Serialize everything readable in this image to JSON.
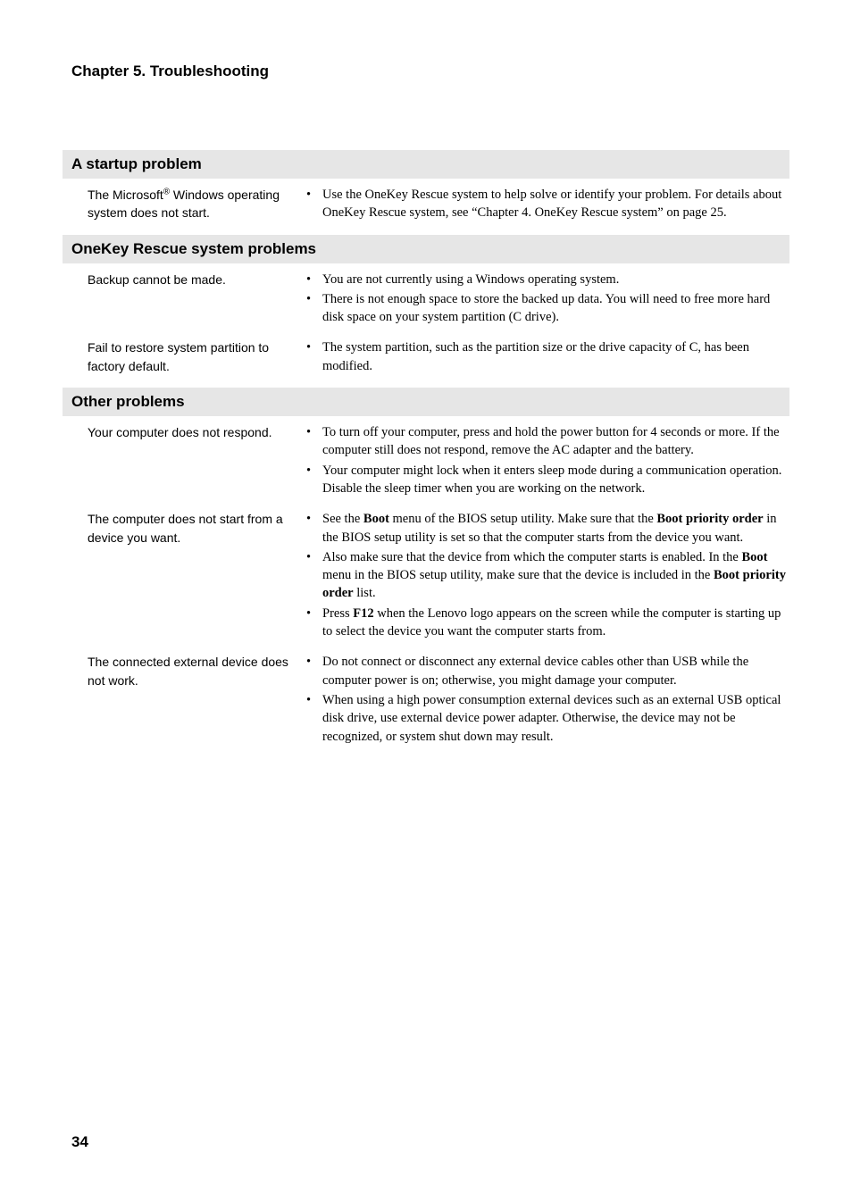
{
  "chapter_title": "Chapter 5. Troubleshooting",
  "page_number": "34",
  "colors": {
    "section_bg": "#e6e6e6",
    "text": "#000000",
    "page_bg": "#ffffff"
  },
  "sections": [
    {
      "header": "A startup problem",
      "rows": [
        {
          "left_pre": "The Microsoft",
          "left_sup": "®",
          "left_post": " Windows operating system does not start.",
          "bullets": [
            "Use the OneKey Rescue system to help solve or identify your problem. For details about OneKey Rescue system, see “Chapter 4. OneKey Rescue system” on page 25."
          ]
        }
      ]
    },
    {
      "header": "OneKey Rescue system problems",
      "rows": [
        {
          "left": "Backup cannot be made.",
          "bullets": [
            "You are not currently using a Windows operating system.",
            "There is not enough space to store the backed up data. You will need to free more hard disk space on your system partition (C drive)."
          ]
        },
        {
          "left": "Fail to restore system partition to factory default.",
          "bullets": [
            "The system partition, such as the partition size or the drive capacity of C, has been modified."
          ]
        }
      ]
    },
    {
      "header": "Other problems",
      "rows": [
        {
          "left": "Your computer does not respond.",
          "bullets": [
            "To turn off your computer, press and hold the power button for 4 seconds or more. If the computer still does not respond, remove the AC adapter and the battery.",
            "Your computer might lock when it enters sleep mode during a communication operation. Disable the sleep timer when you are working on the network."
          ]
        },
        {
          "left": "The computer does not start from a device you want.",
          "bullets_html": [
            "See the <b>Boot</b> menu of the BIOS setup utility. Make sure that the <b>Boot priority order</b> in the BIOS setup utility is set so that the computer starts from the device you want.",
            "Also make sure that the device from which the computer starts is enabled. In the <b>Boot</b> menu in the BIOS setup utility, make sure that the device is included in the <b>Boot priority order</b> list.",
            "Press <b>F12</b> when the Lenovo logo appears on the screen while the computer is starting up to select the device you want the computer starts from."
          ]
        },
        {
          "left": "The connected external device does not work.",
          "bullets": [
            "Do not connect or disconnect any external device cables other than USB while the computer power is on; otherwise, you might damage your computer.",
            "When using a high power consumption external devices such as an external USB optical disk drive, use external device power adapter. Otherwise, the device may not be recognized, or system shut down may result."
          ]
        }
      ]
    }
  ]
}
